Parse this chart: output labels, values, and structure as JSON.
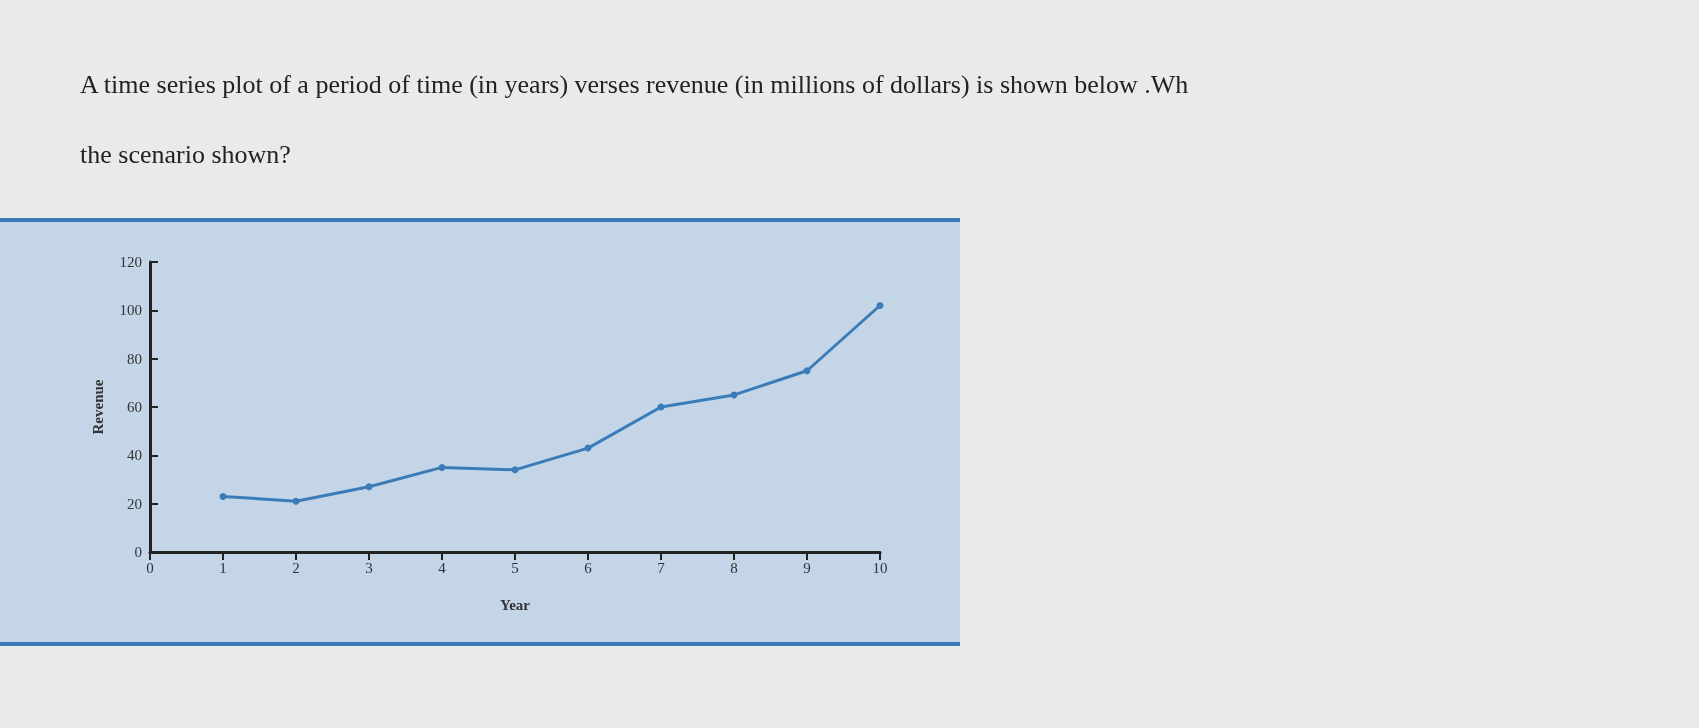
{
  "chart_data": {
    "type": "line",
    "title": "A time series plot of a period of time (in years) verses revenue (in millions of dollars) is shown below .Wh",
    "subtitle": "the scenario shown?",
    "xlabel": "Year",
    "ylabel": "Revenue",
    "x": [
      1,
      2,
      3,
      4,
      5,
      6,
      7,
      8,
      9,
      10
    ],
    "series": [
      {
        "color": "#3b7cb8",
        "values": [
          23,
          21,
          27,
          35,
          34,
          43,
          60,
          65,
          75,
          102
        ]
      }
    ],
    "xlim": [
      0,
      10
    ],
    "xticks": [
      0,
      1,
      2,
      3,
      4,
      5,
      6,
      7,
      8,
      9,
      10
    ],
    "ylim": [
      0,
      120
    ],
    "yticks": [
      0,
      20,
      40,
      60,
      80,
      100,
      120
    ],
    "grid": false,
    "marker": "circle",
    "line_style": "solid"
  }
}
